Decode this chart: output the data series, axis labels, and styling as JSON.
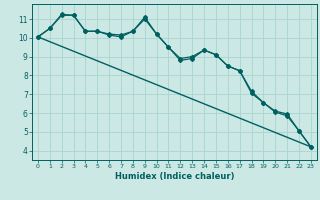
{
  "title": "",
  "xlabel": "Humidex (Indice chaleur)",
  "xlim": [
    -0.5,
    23.5
  ],
  "ylim": [
    3.5,
    11.8
  ],
  "yticks": [
    4,
    5,
    6,
    7,
    8,
    9,
    10,
    11
  ],
  "xticks": [
    0,
    1,
    2,
    3,
    4,
    5,
    6,
    7,
    8,
    9,
    10,
    11,
    12,
    13,
    14,
    15,
    16,
    17,
    18,
    19,
    20,
    21,
    22,
    23
  ],
  "bg_color": "#cce8e4",
  "grid_color": "#aad4cf",
  "line_color": "#006060",
  "series": [
    {
      "x": [
        0,
        1,
        2,
        3,
        4,
        5,
        6,
        7,
        8,
        9,
        10,
        11,
        12,
        13,
        14,
        15,
        16,
        17,
        18,
        19,
        20,
        21,
        22,
        23
      ],
      "y": [
        10.05,
        10.5,
        11.2,
        11.2,
        10.35,
        10.35,
        10.15,
        10.05,
        10.35,
        11.1,
        10.2,
        9.5,
        8.8,
        8.9,
        9.35,
        9.1,
        8.5,
        8.25,
        7.05,
        6.55,
        6.05,
        5.85,
        5.05,
        4.2
      ],
      "marker": "D",
      "linewidth": 0.9,
      "markersize": 2.0
    },
    {
      "x": [
        0,
        1,
        2,
        3,
        4,
        5,
        6,
        7,
        8,
        9,
        10,
        11,
        12,
        13,
        14,
        15,
        16,
        17,
        18,
        19,
        20,
        21,
        22,
        23
      ],
      "y": [
        10.05,
        10.5,
        11.25,
        11.2,
        10.35,
        10.35,
        10.2,
        10.15,
        10.35,
        11.0,
        10.2,
        9.5,
        8.9,
        9.0,
        9.35,
        9.1,
        8.5,
        8.25,
        7.15,
        6.55,
        6.1,
        5.95,
        5.05,
        4.2
      ],
      "marker": "D",
      "linewidth": 0.9,
      "markersize": 2.0
    },
    {
      "x": [
        0,
        23
      ],
      "y": [
        10.05,
        4.2
      ],
      "marker": null,
      "linewidth": 1.0,
      "markersize": 0
    }
  ]
}
